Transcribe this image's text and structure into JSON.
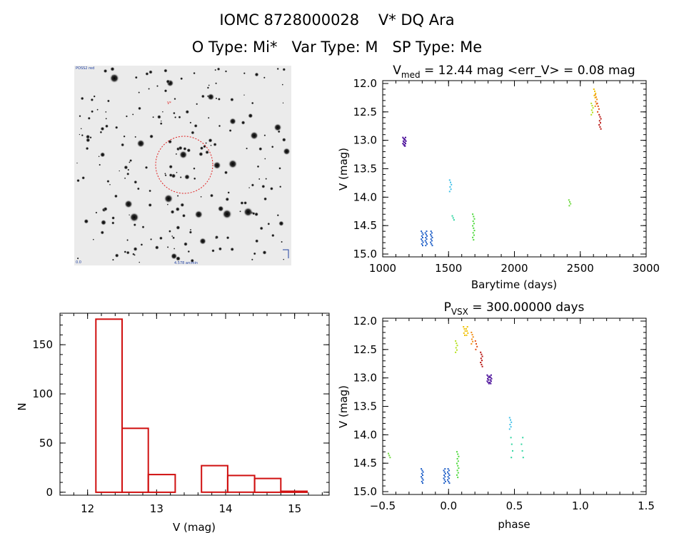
{
  "header": {
    "line1": "IOMC 8728000028    V* DQ Ara",
    "line2": "O Type: Mi*   Var Type: M   SP Type: Me"
  },
  "image_panel": {
    "label_top_left": "POSS2 red",
    "label_marker": "V*",
    "label_bottom_left": "0.0",
    "label_bottom_mid": "4.578 arcmin",
    "circle_color": "#e02020"
  },
  "chart_data": [
    {
      "id": "lightcurve",
      "type": "scatter",
      "title_parts": {
        "v": "V",
        "sub": "med",
        "rest": " = 12.44 mag <err_V> = 0.08 mag"
      },
      "xlabel": "Barytime (days)",
      "ylabel": "V (mag)",
      "xlim": [
        1000,
        3000
      ],
      "ylim": [
        15.05,
        11.95
      ],
      "xticks": [
        1000,
        1500,
        2000,
        2500,
        3000
      ],
      "xtick_labels": [
        "1000",
        "1500",
        "2000",
        "2500",
        "3000"
      ],
      "yticks": [
        12.0,
        12.5,
        13.0,
        13.5,
        14.0,
        14.5,
        15.0
      ],
      "ytick_labels": [
        "12.0",
        "12.5",
        "13.0",
        "13.5",
        "14.0",
        "14.5",
        "15.0"
      ],
      "groups": [
        {
          "color": "#4b0f9a",
          "x": [
            1160,
            1170
          ],
          "y_range": [
            12.95,
            13.1
          ],
          "n": 8
        },
        {
          "color": "#1f5fc8",
          "x": [
            1300,
            1330,
            1370
          ],
          "y_range": [
            14.6,
            14.85
          ],
          "n": 10
        },
        {
          "color": "#3fc0e8",
          "x": [
            1515
          ],
          "y_range": [
            13.7,
            13.9
          ],
          "n": 6
        },
        {
          "color": "#2fd5a0",
          "x": [
            1535
          ],
          "y_range": [
            14.33,
            14.4
          ],
          "n": 3
        },
        {
          "color": "#4cd93a",
          "x": [
            1690
          ],
          "y_range": [
            14.3,
            14.75
          ],
          "n": 12
        },
        {
          "color": "#6fd940",
          "x": [
            2420
          ],
          "y_range": [
            14.05,
            14.15
          ],
          "n": 4
        },
        {
          "color": "#b4e01a",
          "x": [
            2590
          ],
          "y_range": [
            12.35,
            12.55
          ],
          "n": 6
        },
        {
          "color": "#f0c000",
          "x": [
            2610
          ],
          "y_range": [
            12.1,
            12.25
          ],
          "n": 5
        },
        {
          "color": "#f08a10",
          "x": [
            2620
          ],
          "y_range": [
            12.2,
            12.4
          ],
          "n": 6
        },
        {
          "color": "#e04a10",
          "x": [
            2635
          ],
          "y_range": [
            12.35,
            12.5
          ],
          "n": 4
        },
        {
          "color": "#b81410",
          "x": [
            2650
          ],
          "y_range": [
            12.55,
            12.8
          ],
          "n": 8
        }
      ]
    },
    {
      "id": "histogram",
      "type": "bar",
      "title": "",
      "xlabel": "V (mag)",
      "ylabel": "N",
      "xlim": [
        11.6,
        15.5
      ],
      "ylim": [
        -3,
        182
      ],
      "xticks": [
        12,
        13,
        14,
        15
      ],
      "xtick_labels": [
        "12",
        "13",
        "14",
        "15"
      ],
      "yticks": [
        0,
        50,
        100,
        150
      ],
      "ytick_labels": [
        "0",
        "50",
        "100",
        "150"
      ],
      "bin_edges": [
        12.12,
        12.5,
        12.88,
        13.27,
        13.65,
        14.03,
        14.42,
        14.8,
        15.18
      ],
      "values": [
        176,
        65,
        18,
        0,
        27,
        17,
        14,
        1
      ],
      "bar_color": "#d01010"
    },
    {
      "id": "phased",
      "type": "scatter",
      "title_parts": {
        "v": "P",
        "sub": "VSX",
        "rest": " = 300.00000 days"
      },
      "xlabel": "phase",
      "ylabel": "V (mag)",
      "xlim": [
        -0.5,
        1.5
      ],
      "ylim": [
        15.05,
        11.95
      ],
      "xticks": [
        -0.5,
        0.0,
        0.5,
        1.0,
        1.5
      ],
      "xtick_labels": [
        "−0.5",
        "0.0",
        "0.5",
        "1.0",
        "1.5"
      ],
      "yticks": [
        12.0,
        12.5,
        13.0,
        13.5,
        14.0,
        14.5,
        15.0
      ],
      "ytick_labels": [
        "12.0",
        "12.5",
        "13.0",
        "13.5",
        "14.0",
        "14.5",
        "15.0"
      ],
      "groups": [
        {
          "color": "#4b0f9a",
          "x": [
            0.3,
            0.32
          ],
          "y_range": [
            12.95,
            13.1
          ],
          "n": 8
        },
        {
          "color": "#1f5fc8",
          "x": [
            -0.2,
            -0.03,
            -0.0
          ],
          "y_range": [
            14.6,
            14.85
          ],
          "n": 10
        },
        {
          "color": "#3fc0e8",
          "x": [
            0.47
          ],
          "y_range": [
            13.7,
            13.9
          ],
          "n": 6
        },
        {
          "color": "#2fd5a0",
          "x": [
            0.48,
            0.56
          ],
          "y_range": [
            14.05,
            14.4
          ],
          "n": 4
        },
        {
          "color": "#4cd93a",
          "x": [
            0.07
          ],
          "y_range": [
            14.3,
            14.75
          ],
          "n": 12
        },
        {
          "color": "#6fd940",
          "x": [
            -0.45
          ],
          "y_range": [
            14.33,
            14.4
          ],
          "n": 3
        },
        {
          "color": "#b4e01a",
          "x": [
            0.06
          ],
          "y_range": [
            12.35,
            12.55
          ],
          "n": 6
        },
        {
          "color": "#f0c000",
          "x": [
            0.12,
            0.14
          ],
          "y_range": [
            12.1,
            12.25
          ],
          "n": 5
        },
        {
          "color": "#f08a10",
          "x": [
            0.18
          ],
          "y_range": [
            12.2,
            12.4
          ],
          "n": 6
        },
        {
          "color": "#e04a10",
          "x": [
            0.21
          ],
          "y_range": [
            12.35,
            12.5
          ],
          "n": 4
        },
        {
          "color": "#b81410",
          "x": [
            0.25
          ],
          "y_range": [
            12.55,
            12.8
          ],
          "n": 8
        }
      ]
    }
  ]
}
